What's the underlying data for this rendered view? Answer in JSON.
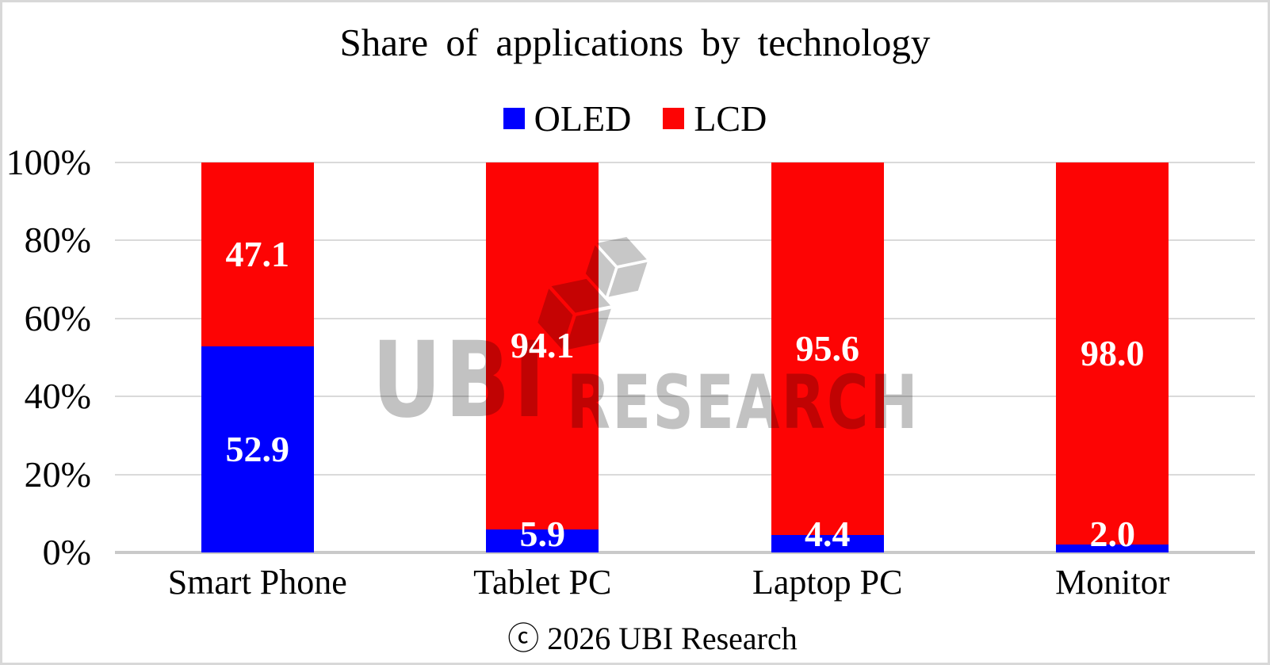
{
  "chart_data": {
    "type": "bar",
    "stacked": true,
    "percent_axis": true,
    "title": "Share of applications by technology",
    "categories": [
      "Smart Phone",
      "Tablet PC",
      "Laptop PC",
      "Monitor"
    ],
    "series": [
      {
        "name": "OLED",
        "color": "#0000fe",
        "values": [
          52.9,
          5.9,
          4.4,
          2.0
        ]
      },
      {
        "name": "LCD",
        "color": "#fd0404",
        "values": [
          47.1,
          94.1,
          95.6,
          98.0
        ]
      }
    ],
    "xlabel": "",
    "ylabel": "",
    "y_ticks": [
      "0%",
      "20%",
      "40%",
      "60%",
      "80%",
      "100%"
    ],
    "ylim": [
      0,
      100
    ],
    "grid": true,
    "legend_position": "top",
    "value_labels": true,
    "value_label_color": "#ffffff",
    "gridline_color": "#dadada",
    "axis_line_color": "#c9c9c9"
  },
  "watermark": {
    "logo_text": "UBI",
    "research_text": "RESEARCH"
  },
  "footer": {
    "copyright": "ⓒ 2026 UBI Research"
  }
}
